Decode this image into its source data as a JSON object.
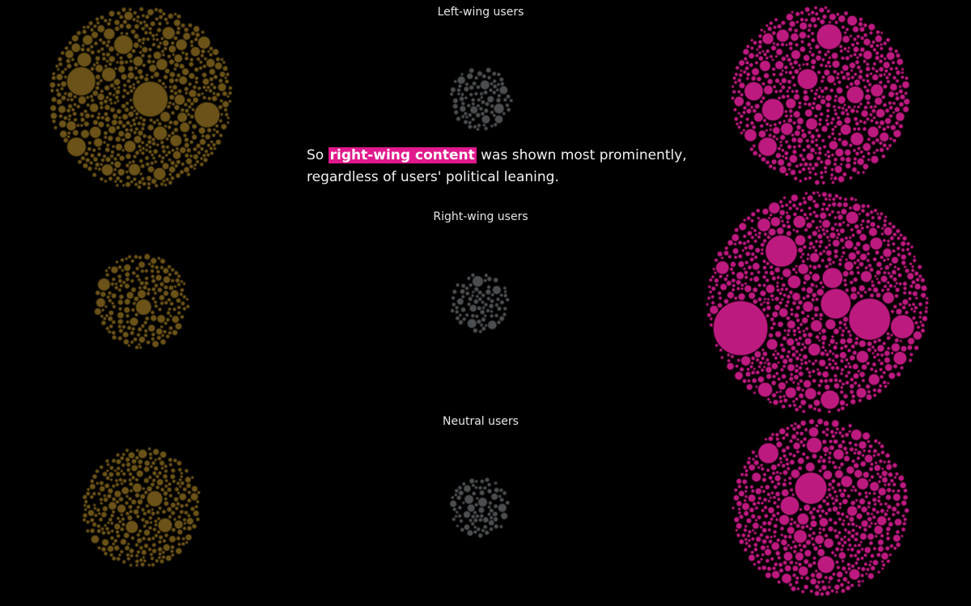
{
  "rows": [
    {
      "label": "Left-wing users"
    },
    {
      "label": "Right-wing users"
    },
    {
      "label": "Neutral users"
    }
  ],
  "caption": {
    "before": "So ",
    "highlight": "right-wing content",
    "after": " was shown most prominently,",
    "line2": "regardless of users' political leaning."
  }
}
